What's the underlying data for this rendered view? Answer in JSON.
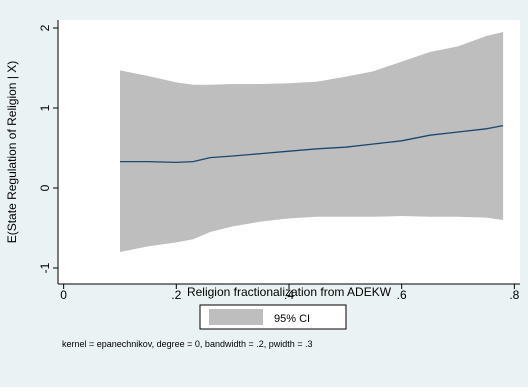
{
  "chart_data": {
    "type": "line",
    "title": "",
    "xlabel": "Religion fractionalization from ADEKW",
    "ylabel": "E(State Regulation of Religion | X)",
    "x_ticks": [
      0,
      0.2,
      0.4,
      0.6,
      0.8
    ],
    "x_tick_labels": [
      "0",
      ".2",
      ".4",
      ".6",
      ".8"
    ],
    "y_ticks": [
      -1,
      0,
      1,
      2
    ],
    "y_tick_labels": [
      "-1",
      "0",
      "1",
      "2"
    ],
    "xlim": [
      -0.01,
      0.81
    ],
    "ylim": [
      -1.2,
      2.1
    ],
    "grid": false,
    "legend": {
      "position": "bottom",
      "entries": [
        "95% CI"
      ]
    },
    "note": "kernel = epanechnikov, degree = 0, bandwidth = .2, pwidth = .3",
    "colors": {
      "band": "#bebebe",
      "line": "#1a476f",
      "plot_bg": "#ffffff",
      "frame": "#eaf2f3"
    },
    "x": [
      0.1,
      0.15,
      0.2,
      0.23,
      0.26,
      0.3,
      0.35,
      0.4,
      0.45,
      0.5,
      0.55,
      0.6,
      0.65,
      0.7,
      0.75,
      0.78
    ],
    "series": [
      {
        "values": [
          0.33,
          0.33,
          0.32,
          0.33,
          0.38,
          0.4,
          0.43,
          0.46,
          0.49,
          0.51,
          0.55,
          0.59,
          0.66,
          0.7,
          0.74,
          0.78
        ]
      },
      {
        "values": [
          1.47,
          1.4,
          1.32,
          1.29,
          1.29,
          1.3,
          1.3,
          1.31,
          1.33,
          1.39,
          1.46,
          1.58,
          1.7,
          1.77,
          1.9,
          1.95
        ]
      },
      {
        "values": [
          -0.8,
          -0.73,
          -0.68,
          -0.64,
          -0.55,
          -0.48,
          -0.42,
          -0.38,
          -0.36,
          -0.36,
          -0.36,
          -0.35,
          -0.36,
          -0.36,
          -0.37,
          -0.4
        ]
      }
    ]
  }
}
